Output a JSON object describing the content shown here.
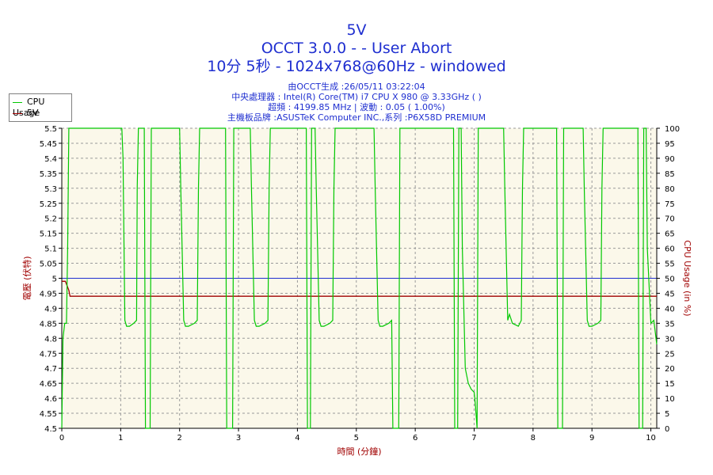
{
  "header": {
    "title_line1": "5V",
    "title_line2": "OCCT 3.0.0 -  - User Abort",
    "title_line3": "10分 5秒 - 1024x768@60Hz - windowed",
    "info_line1": "由OCCT生成 :26/05/11 03:22:04",
    "info_line2": "中央處理器 : Intel(R) Core(TM) i7 CPU X 980 @ 3.33GHz (  )",
    "info_line3": "超頻 : 4199.85 MHz | 波動 : 0.05 ( 1.00%)",
    "info_line4": "主機板品牌 :ASUSTeK Computer INC.,系列 :P6X58D PREMIUM"
  },
  "legend": {
    "items": [
      {
        "label": "CPU Usage",
        "color": "#00c800"
      },
      {
        "label": "5V",
        "color": "#a00000"
      }
    ]
  },
  "colors": {
    "plot_background": "#fbf8ea",
    "grid": "#9a9a9a",
    "axis_text": "#000000",
    "left_axis_label": "#a00000",
    "right_axis_label": "#a00000",
    "reference_line": "#1f2fd0",
    "voltage": "#a00000",
    "cpu": "#00c800"
  },
  "chart_data": {
    "type": "line",
    "xlabel": "時間 (分鐘)",
    "ylabel_left": "電壓 (伏特)",
    "ylabel_right": "CPU Usage (in %)",
    "xlim": [
      0,
      10.1
    ],
    "ylim_left": [
      4.5,
      5.5
    ],
    "ylim_right": [
      0,
      100
    ],
    "x_ticks": [
      "0",
      "1",
      "2",
      "3",
      "4",
      "5",
      "6",
      "7",
      "8",
      "9",
      "10"
    ],
    "y_left_ticks": [
      "4.5",
      "4.55",
      "4.6",
      "4.65",
      "4.7",
      "4.75",
      "4.8",
      "4.85",
      "4.9",
      "4.95",
      "5",
      "5.05",
      "5.1",
      "5.15",
      "5.2",
      "5.25",
      "5.3",
      "5.35",
      "5.4",
      "5.45",
      "5.5"
    ],
    "y_right_ticks": [
      "0",
      "5",
      "10",
      "15",
      "20",
      "25",
      "30",
      "35",
      "40",
      "45",
      "50",
      "55",
      "60",
      "65",
      "70",
      "75",
      "80",
      "85",
      "90",
      "95",
      "100"
    ],
    "grid": true,
    "legend_position": "top-left",
    "reference_line_value": 5.0,
    "series": [
      {
        "name": "5V",
        "axis": "left",
        "x": [
          0,
          0.06,
          0.12,
          0.14,
          10.1
        ],
        "y": [
          4.99,
          4.99,
          4.96,
          4.94,
          4.94
        ]
      },
      {
        "name": "CPU Usage",
        "axis": "right",
        "x": [
          0,
          0.02,
          0.05,
          0.08,
          0.1,
          0.12,
          0.14,
          1.02,
          1.04,
          1.07,
          1.1,
          1.15,
          1.22,
          1.27,
          1.28,
          1.3,
          1.32,
          1.4,
          1.42,
          1.5,
          1.52,
          2.0,
          2.02,
          2.07,
          2.1,
          2.15,
          2.25,
          2.3,
          2.32,
          2.34,
          2.36,
          2.78,
          2.8,
          2.9,
          2.92,
          3.2,
          3.22,
          3.27,
          3.3,
          3.35,
          3.45,
          3.5,
          3.52,
          3.54,
          3.56,
          4.15,
          4.17,
          4.22,
          4.24,
          4.3,
          4.32,
          4.37,
          4.4,
          4.45,
          4.55,
          4.6,
          4.62,
          4.64,
          4.66,
          5.3,
          5.32,
          5.37,
          5.4,
          5.45,
          5.55,
          5.6,
          5.62,
          5.72,
          5.74,
          6.65,
          6.67,
          6.72,
          6.74,
          6.78,
          6.8,
          6.85,
          6.9,
          6.95,
          7.0,
          7.02,
          7.05,
          7.07,
          7.5,
          7.52,
          7.57,
          7.6,
          7.65,
          7.75,
          7.8,
          7.82,
          7.84,
          7.86,
          8.4,
          8.42,
          8.5,
          8.52,
          8.85,
          8.87,
          8.92,
          8.95,
          9.0,
          9.1,
          9.15,
          9.17,
          9.19,
          9.21,
          9.78,
          9.8,
          9.86,
          9.88,
          9.92,
          9.94,
          10.0,
          10.05,
          10.1
        ],
        "y": [
          0,
          30,
          35,
          35,
          60,
          100,
          100,
          100,
          90,
          36,
          34,
          34,
          35,
          36,
          80,
          100,
          100,
          100,
          0,
          0,
          100,
          100,
          80,
          36,
          34,
          34,
          35,
          36,
          80,
          100,
          100,
          100,
          0,
          0,
          100,
          100,
          80,
          36,
          34,
          34,
          35,
          36,
          80,
          100,
          100,
          100,
          0,
          0,
          100,
          100,
          80,
          36,
          34,
          34,
          35,
          36,
          80,
          100,
          100,
          100,
          80,
          36,
          34,
          34,
          35,
          36,
          0,
          0,
          100,
          100,
          0,
          0,
          100,
          100,
          60,
          20,
          15,
          13,
          12,
          8,
          0,
          100,
          100,
          80,
          36,
          38,
          35,
          34,
          36,
          80,
          100,
          100,
          100,
          0,
          0,
          100,
          100,
          80,
          36,
          34,
          34,
          35,
          36,
          80,
          100,
          100,
          100,
          0,
          0,
          100,
          100,
          60,
          35,
          36,
          28
        ]
      }
    ]
  }
}
